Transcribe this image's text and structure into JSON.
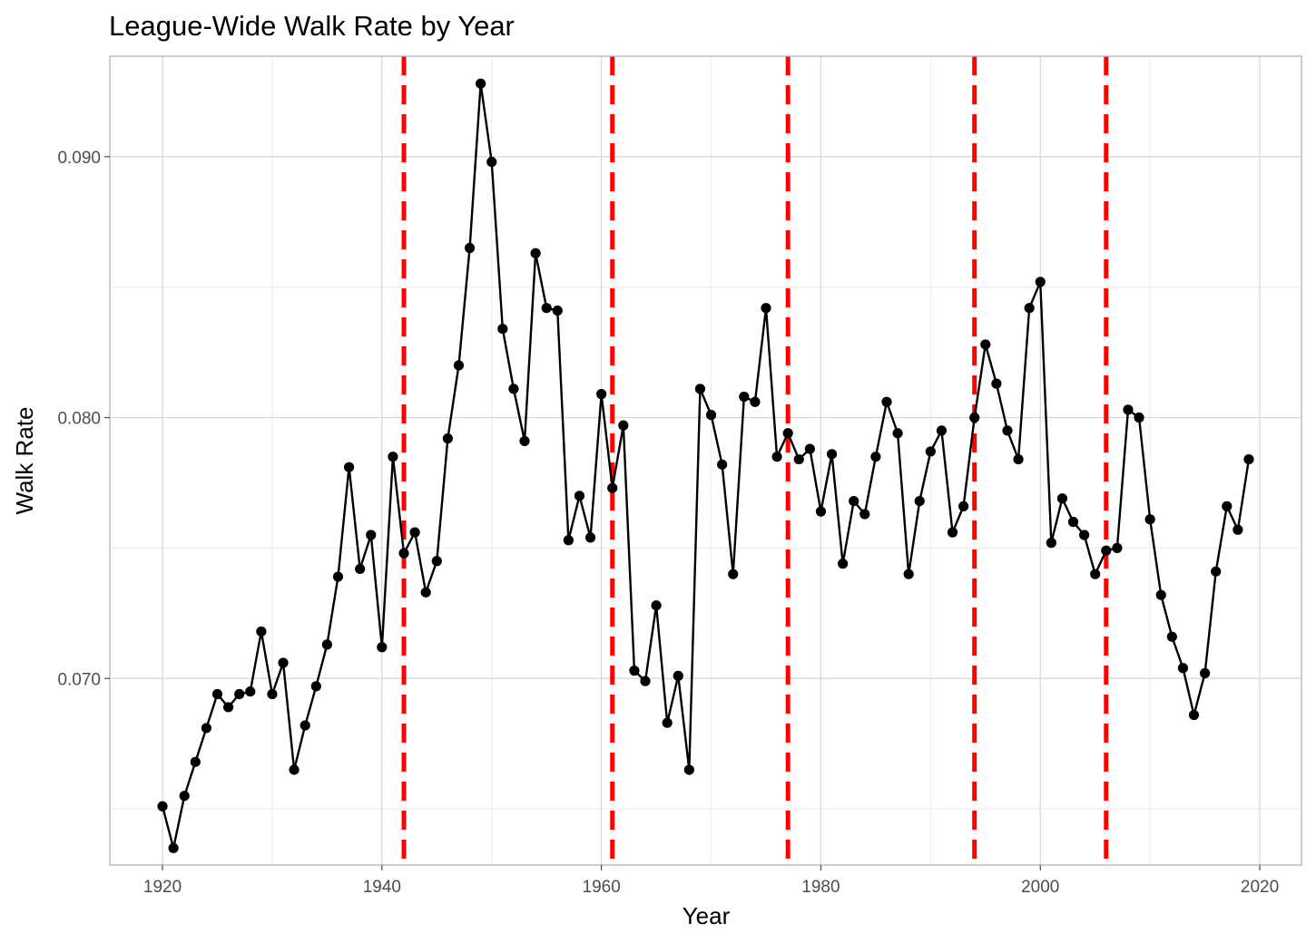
{
  "chart_data": {
    "type": "line",
    "title": "League-Wide Walk Rate by Year",
    "xlabel": "Year",
    "ylabel": "Walk Rate",
    "xlim": [
      1915.2,
      2023.8
    ],
    "ylim": [
      0.06285,
      0.09385
    ],
    "x_ticks": [
      1920,
      1940,
      1960,
      1980,
      2000,
      2020
    ],
    "x_tick_labels": [
      "1920",
      "1940",
      "1960",
      "1980",
      "2000",
      "2020"
    ],
    "y_ticks": [
      0.07,
      0.08,
      0.09
    ],
    "y_tick_labels": [
      "0.070",
      "0.080",
      "0.090"
    ],
    "grid": true,
    "legend": "none",
    "line_color": "#000000",
    "vline_color": "#ff0000",
    "vlines": [
      1942,
      1961,
      1977,
      1994,
      2006
    ],
    "series": [
      {
        "x": [
          1920,
          1921,
          1922,
          1923,
          1924,
          1925,
          1926,
          1927,
          1928,
          1929,
          1930,
          1931,
          1932,
          1933,
          1934,
          1935,
          1936,
          1937,
          1938,
          1939,
          1940,
          1941,
          1942,
          1943,
          1944,
          1945,
          1946,
          1947,
          1948,
          1949,
          1950,
          1951,
          1952,
          1953,
          1954,
          1955,
          1956,
          1957,
          1958,
          1959,
          1960,
          1961,
          1962,
          1963,
          1964,
          1965,
          1966,
          1967,
          1968,
          1969,
          1970,
          1971,
          1972,
          1973,
          1974,
          1975,
          1976,
          1977,
          1978,
          1979,
          1980,
          1981,
          1982,
          1983,
          1984,
          1985,
          1986,
          1987,
          1988,
          1989,
          1990,
          1991,
          1992,
          1993,
          1994,
          1995,
          1996,
          1997,
          1998,
          1999,
          2000,
          2001,
          2002,
          2003,
          2004,
          2005,
          2006,
          2007,
          2008,
          2009,
          2010,
          2011,
          2012,
          2013,
          2014,
          2015,
          2016,
          2017,
          2018,
          2019
        ],
        "values": [
          0.0651,
          0.0635,
          0.0655,
          0.0668,
          0.0681,
          0.0694,
          0.0689,
          0.0694,
          0.0695,
          0.0718,
          0.0694,
          0.0706,
          0.0665,
          0.0682,
          0.0697,
          0.0713,
          0.0739,
          0.0781,
          0.0742,
          0.0755,
          0.0712,
          0.0785,
          0.0748,
          0.0756,
          0.0733,
          0.0745,
          0.0792,
          0.082,
          0.0865,
          0.0928,
          0.0898,
          0.0834,
          0.0811,
          0.0791,
          0.0863,
          0.0842,
          0.0841,
          0.0753,
          0.077,
          0.0754,
          0.0809,
          0.0773,
          0.0797,
          0.0703,
          0.0699,
          0.0728,
          0.0683,
          0.0701,
          0.0665,
          0.0811,
          0.0801,
          0.0782,
          0.074,
          0.0808,
          0.0806,
          0.0842,
          0.0785,
          0.0794,
          0.0784,
          0.0788,
          0.0764,
          0.0786,
          0.0744,
          0.0768,
          0.0763,
          0.0785,
          0.0806,
          0.0794,
          0.074,
          0.0768,
          0.0787,
          0.0795,
          0.0756,
          0.0766,
          0.08,
          0.0828,
          0.0813,
          0.0795,
          0.0784,
          0.0842,
          0.0852,
          0.0752,
          0.0769,
          0.076,
          0.0755,
          0.074,
          0.0749,
          0.075,
          0.0803,
          0.08,
          0.0761,
          0.0732,
          0.0716,
          0.0704,
          0.0686,
          0.0702,
          0.0741,
          0.0766,
          0.0757,
          0.0784
        ]
      }
    ]
  }
}
